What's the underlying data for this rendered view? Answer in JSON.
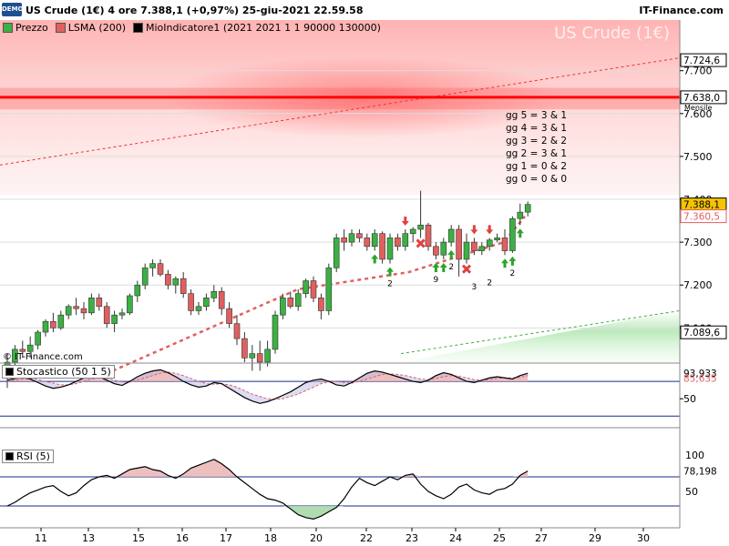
{
  "header": {
    "badge": "DEMO",
    "title": "US Crude (1€) 4 ore 7.388,1 (+0,97%) 25-giu-2021 22.59.58",
    "brand": "IT-Finance.com"
  },
  "legend": [
    {
      "label": "Prezzo",
      "color": "#3cb043"
    },
    {
      "label": "LSMA (200)",
      "color": "#e06060"
    },
    {
      "label": "MioIndicatore1 (2021 2021 1 1 90000 130000)",
      "color": "#000000"
    }
  ],
  "watermark": "US Crude (1€)",
  "copyright": "© IT-Finance.com",
  "annotation_lines": [
    "gg 5 = 3  & 1",
    "gg 4 = 3  & 1",
    "gg 3 = 2  & 2",
    "gg 2 = 3  & 1",
    "gg 1 = 0  & 2",
    "gg 0 = 0  & 0"
  ],
  "colors": {
    "up": "#3cb043",
    "down": "#e06060",
    "monthly": "#ff0000",
    "last_price": "#f5c400"
  },
  "chart_data": [
    {
      "type": "candlestick",
      "x_labels": [
        "11",
        "13",
        "15",
        "16",
        "17",
        "18",
        "20",
        "22",
        "23",
        "24",
        "25",
        "27",
        "29",
        "30"
      ],
      "y_ticks": [
        "7.700",
        "7.600",
        "7.500",
        "7.400",
        "7.300",
        "7.200",
        "7.100"
      ],
      "ylim": [
        7.02,
        7.78
      ],
      "price_tags": [
        {
          "label": "7.724,6",
          "value": 7.7246,
          "kind": "box"
        },
        {
          "label": "7.638,0",
          "value": 7.638,
          "kind": "box",
          "sublabel": "Mensile"
        },
        {
          "label": "7.388,1",
          "value": 7.3881,
          "kind": "last"
        },
        {
          "label": "7.360,5",
          "value": 7.3605,
          "kind": "lsma"
        },
        {
          "label": "7.089,6",
          "value": 7.0896,
          "kind": "box"
        }
      ],
      "monthly_level": 7.638,
      "upper_channel": {
        "start": 7.48,
        "end": 7.73
      },
      "lower_channel": {
        "start": 6.92,
        "end": 7.14
      },
      "lsma": [
        [
          20,
          7.0
        ],
        [
          55,
          7.19
        ],
        [
          76,
          7.23
        ],
        [
          94,
          7.3
        ],
        [
          98,
          7.36
        ]
      ],
      "candles": [
        [
          6.985,
          7.04,
          6.96,
          7.02
        ],
        [
          7.02,
          7.06,
          7.0,
          7.05
        ],
        [
          7.05,
          7.07,
          7.03,
          7.045
        ],
        [
          7.045,
          7.08,
          7.03,
          7.06
        ],
        [
          7.06,
          7.095,
          7.05,
          7.09
        ],
        [
          7.09,
          7.12,
          7.08,
          7.115
        ],
        [
          7.115,
          7.135,
          7.09,
          7.1
        ],
        [
          7.1,
          7.14,
          7.095,
          7.13
        ],
        [
          7.13,
          7.155,
          7.12,
          7.15
        ],
        [
          7.15,
          7.17,
          7.13,
          7.145
        ],
        [
          7.145,
          7.16,
          7.12,
          7.135
        ],
        [
          7.135,
          7.18,
          7.13,
          7.17
        ],
        [
          7.17,
          7.18,
          7.14,
          7.15
        ],
        [
          7.15,
          7.16,
          7.1,
          7.11
        ],
        [
          7.11,
          7.14,
          7.09,
          7.13
        ],
        [
          7.13,
          7.145,
          7.12,
          7.135
        ],
        [
          7.135,
          7.18,
          7.13,
          7.175
        ],
        [
          7.175,
          7.21,
          7.16,
          7.2
        ],
        [
          7.2,
          7.25,
          7.19,
          7.24
        ],
        [
          7.24,
          7.26,
          7.22,
          7.25
        ],
        [
          7.25,
          7.26,
          7.22,
          7.225
        ],
        [
          7.225,
          7.235,
          7.19,
          7.2
        ],
        [
          7.2,
          7.22,
          7.18,
          7.215
        ],
        [
          7.215,
          7.23,
          7.17,
          7.18
        ],
        [
          7.18,
          7.19,
          7.13,
          7.14
        ],
        [
          7.14,
          7.16,
          7.13,
          7.15
        ],
        [
          7.15,
          7.18,
          7.14,
          7.17
        ],
        [
          7.17,
          7.2,
          7.16,
          7.185
        ],
        [
          7.185,
          7.195,
          7.13,
          7.145
        ],
        [
          7.145,
          7.16,
          7.1,
          7.11
        ],
        [
          7.11,
          7.13,
          7.06,
          7.075
        ],
        [
          7.075,
          7.09,
          7.02,
          7.03
        ],
        [
          7.03,
          7.06,
          7.0,
          7.04
        ],
        [
          7.04,
          7.07,
          7.0,
          7.02
        ],
        [
          7.02,
          7.07,
          7.01,
          7.05
        ],
        [
          7.05,
          7.14,
          7.04,
          7.13
        ],
        [
          7.13,
          7.18,
          7.12,
          7.17
        ],
        [
          7.17,
          7.185,
          7.145,
          7.15
        ],
        [
          7.15,
          7.19,
          7.14,
          7.18
        ],
        [
          7.18,
          7.215,
          7.17,
          7.21
        ],
        [
          7.21,
          7.22,
          7.16,
          7.17
        ],
        [
          7.17,
          7.18,
          7.12,
          7.14
        ],
        [
          7.14,
          7.25,
          7.13,
          7.24
        ],
        [
          7.24,
          7.32,
          7.23,
          7.31
        ],
        [
          7.31,
          7.33,
          7.28,
          7.3
        ],
        [
          7.3,
          7.33,
          7.29,
          7.32
        ],
        [
          7.32,
          7.33,
          7.3,
          7.31
        ],
        [
          7.31,
          7.32,
          7.28,
          7.29
        ],
        [
          7.29,
          7.33,
          7.28,
          7.32
        ],
        [
          7.32,
          7.325,
          7.25,
          7.26
        ],
        [
          7.26,
          7.32,
          7.25,
          7.31
        ],
        [
          7.31,
          7.32,
          7.28,
          7.29
        ],
        [
          7.29,
          7.33,
          7.28,
          7.32
        ],
        [
          7.32,
          7.335,
          7.3,
          7.33
        ],
        [
          7.33,
          7.42,
          7.31,
          7.34
        ],
        [
          7.34,
          7.345,
          7.28,
          7.29
        ],
        [
          7.29,
          7.3,
          7.26,
          7.27
        ],
        [
          7.27,
          7.31,
          7.26,
          7.3
        ],
        [
          7.3,
          7.34,
          7.29,
          7.33
        ],
        [
          7.33,
          7.34,
          7.22,
          7.26
        ],
        [
          7.26,
          7.32,
          7.25,
          7.3
        ],
        [
          7.3,
          7.31,
          7.27,
          7.28
        ],
        [
          7.28,
          7.3,
          7.27,
          7.29
        ],
        [
          7.29,
          7.31,
          7.28,
          7.305
        ],
        [
          7.305,
          7.32,
          7.3,
          7.31
        ],
        [
          7.31,
          7.33,
          7.27,
          7.28
        ],
        [
          7.28,
          7.36,
          7.275,
          7.355
        ],
        [
          7.355,
          7.39,
          7.34,
          7.37
        ],
        [
          7.37,
          7.395,
          7.36,
          7.388
        ]
      ],
      "markers": [
        {
          "i": 48,
          "kind": "up",
          "label": ""
        },
        {
          "i": 50,
          "kind": "up",
          "label": "2"
        },
        {
          "i": 52,
          "kind": "down",
          "label": ""
        },
        {
          "i": 54,
          "kind": "cross",
          "label": ""
        },
        {
          "i": 56,
          "kind": "up",
          "label": "9"
        },
        {
          "i": 57,
          "kind": "up",
          "label": ""
        },
        {
          "i": 58,
          "kind": "up",
          "label": "2"
        },
        {
          "i": 60,
          "kind": "cross",
          "label": ""
        },
        {
          "i": 61,
          "kind": "down",
          "label": "3"
        },
        {
          "i": 63,
          "kind": "down",
          "label": "2"
        },
        {
          "i": 66,
          "kind": "up",
          "label": "2"
        },
        {
          "i": 65,
          "kind": "up",
          "label": ""
        },
        {
          "i": 67,
          "kind": "up",
          "label": ""
        }
      ]
    },
    {
      "type": "line",
      "name": "Stocastico (50 1 5)",
      "y_ticks": [
        "50"
      ],
      "ylim": [
        0,
        110
      ],
      "levels": [
        80,
        20
      ],
      "tags": [
        {
          "label": "93,933",
          "value": 93.933,
          "kind": "plain"
        },
        {
          "label": "85,635",
          "value": 85.635,
          "kind": "red"
        }
      ],
      "values": [
        82,
        85,
        87,
        84,
        78,
        72,
        68,
        70,
        74,
        80,
        86,
        90,
        88,
        82,
        76,
        73,
        80,
        88,
        94,
        98,
        100,
        95,
        88,
        80,
        74,
        70,
        72,
        78,
        76,
        68,
        60,
        52,
        46,
        42,
        45,
        50,
        56,
        62,
        70,
        78,
        82,
        84,
        80,
        74,
        72,
        78,
        86,
        94,
        98,
        96,
        92,
        88,
        84,
        80,
        78,
        82,
        90,
        95,
        92,
        86,
        80,
        78,
        82,
        86,
        88,
        86,
        84,
        90,
        94
      ],
      "signal": [
        80,
        82,
        84,
        85,
        83,
        80,
        77,
        74,
        74,
        76,
        80,
        84,
        86,
        85,
        82,
        79,
        79,
        82,
        86,
        90,
        94,
        96,
        94,
        90,
        85,
        80,
        76,
        75,
        76,
        74,
        70,
        64,
        58,
        54,
        50,
        49,
        50,
        54,
        58,
        64,
        70,
        76,
        79,
        80,
        78,
        77,
        80,
        84,
        88,
        92,
        93,
        92,
        90,
        87,
        84,
        83,
        85,
        88,
        90,
        89,
        86,
        83,
        82,
        83,
        85,
        86,
        86,
        87,
        90
      ]
    },
    {
      "type": "line",
      "name": "RSI (5)",
      "y_ticks": [
        "100",
        "50"
      ],
      "ylim": [
        0,
        110
      ],
      "levels": [
        70,
        30
      ],
      "tags": [
        {
          "label": "78,198",
          "value": 78.198,
          "kind": "plain"
        }
      ],
      "values": [
        30,
        35,
        42,
        48,
        52,
        56,
        58,
        50,
        44,
        48,
        58,
        66,
        70,
        72,
        68,
        74,
        80,
        82,
        84,
        80,
        78,
        72,
        68,
        74,
        82,
        86,
        90,
        94,
        88,
        80,
        70,
        62,
        54,
        46,
        40,
        38,
        34,
        26,
        18,
        14,
        12,
        16,
        22,
        28,
        40,
        56,
        68,
        62,
        58,
        64,
        70,
        66,
        72,
        74,
        60,
        50,
        44,
        40,
        46,
        56,
        60,
        52,
        48,
        46,
        52,
        54,
        60,
        72,
        78
      ]
    }
  ]
}
